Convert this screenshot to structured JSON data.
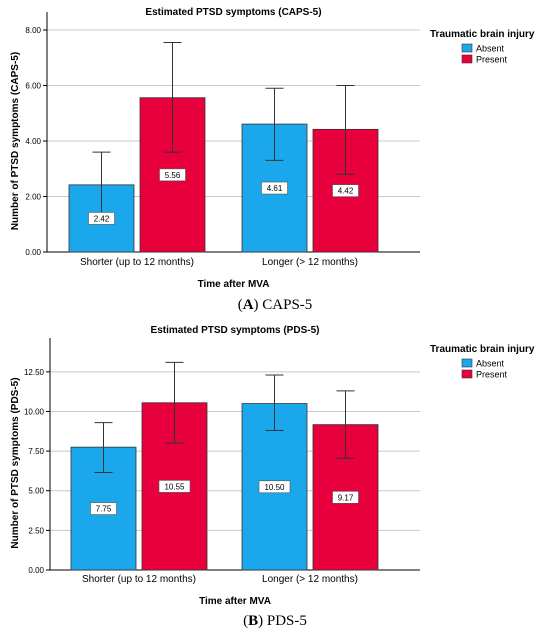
{
  "chart_data": [
    {
      "panel_letter": "A",
      "panel_name": "CAPS-5",
      "type": "bar",
      "title": "Estimated PTSD symptoms (CAPS-5)",
      "xlabel": "Time after MVA",
      "ylabel": "Number of PTSD symptoms (CAPS-5)",
      "categories": [
        "Shorter (up to 12 months)",
        "Longer (> 12 months)"
      ],
      "ylim": [
        0,
        8.0
      ],
      "yticks": [
        0,
        2,
        4,
        6,
        8
      ],
      "ytick_labels": [
        "0.00",
        "2.00",
        "4.00",
        "6.00",
        "8.00"
      ],
      "grid": true,
      "legend_title": "Traumatic brain injury",
      "legend_position": "right",
      "series": [
        {
          "name": "Absent",
          "color": "#1aa7ec",
          "values": [
            2.42,
            4.61
          ],
          "value_labels": [
            "2.42",
            "4.61"
          ],
          "err_low": [
            1.2,
            3.3
          ],
          "err_high": [
            3.6,
            5.9
          ]
        },
        {
          "name": "Present",
          "color": "#e8003d",
          "values": [
            5.56,
            4.42
          ],
          "value_labels": [
            "5.56",
            "4.42"
          ],
          "err_low": [
            3.6,
            2.8
          ],
          "err_high": [
            7.55,
            6.0
          ]
        }
      ]
    },
    {
      "panel_letter": "B",
      "panel_name": "PDS-5",
      "type": "bar",
      "title": "Estimated PTSD symptoms (PDS-5)",
      "xlabel": "Time after MVA",
      "ylabel": "Number of PTSD symptoms (PDS-5)",
      "categories": [
        "Shorter (up to 12 months)",
        "Longer (> 12 months)"
      ],
      "ylim": [
        0,
        13.5
      ],
      "yticks": [
        0,
        2.5,
        5,
        7.5,
        10,
        12.5
      ],
      "ytick_labels": [
        "0.00",
        "2.50",
        "5.00",
        "7.50",
        "10.00",
        "12.50"
      ],
      "grid": true,
      "legend_title": "Traumatic brain injury",
      "legend_position": "right",
      "series": [
        {
          "name": "Absent",
          "color": "#1aa7ec",
          "values": [
            7.75,
            10.5
          ],
          "value_labels": [
            "7.75",
            "10.50"
          ],
          "err_low": [
            6.15,
            8.8
          ],
          "err_high": [
            9.3,
            12.3
          ]
        },
        {
          "name": "Present",
          "color": "#e8003d",
          "values": [
            10.55,
            9.17
          ],
          "value_labels": [
            "10.55",
            "9.17"
          ],
          "err_low": [
            8.0,
            7.05
          ],
          "err_high": [
            13.1,
            11.3
          ]
        }
      ]
    }
  ]
}
